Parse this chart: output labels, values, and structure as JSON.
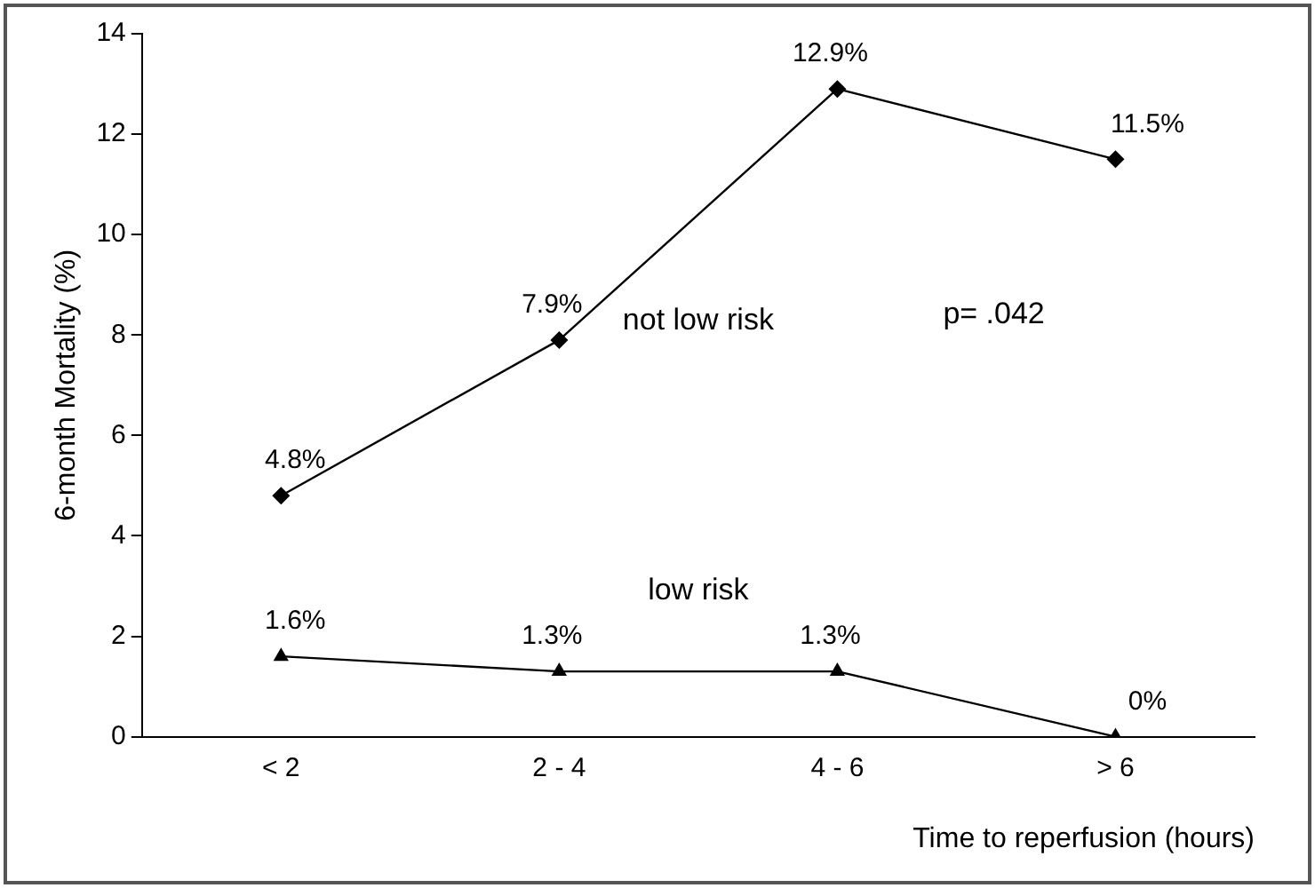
{
  "chart_data": {
    "type": "line",
    "xlabel": "Time to reperfusion (hours)",
    "ylabel": "6-month Mortality (%)",
    "categories": [
      "< 2",
      "2 - 4",
      "4 - 6",
      "> 6"
    ],
    "series": [
      {
        "name": "not low risk",
        "color": "#000000",
        "marker": "diamond",
        "values": [
          4.8,
          7.9,
          12.9,
          11.5
        ],
        "value_labels": [
          "4.8%",
          "7.9%",
          "12.9%",
          "11.5%"
        ]
      },
      {
        "name": "low risk",
        "color": "#000000",
        "marker": "triangle",
        "values": [
          1.6,
          1.3,
          1.3,
          0
        ],
        "value_labels": [
          "1.6%",
          "1.3%",
          "1.3%",
          "0%"
        ]
      }
    ],
    "ylim": [
      0,
      14
    ],
    "yticks": [
      0,
      2,
      4,
      6,
      8,
      10,
      12,
      14
    ],
    "grid": false,
    "legend": false,
    "annotations": [
      "p= .042"
    ]
  }
}
